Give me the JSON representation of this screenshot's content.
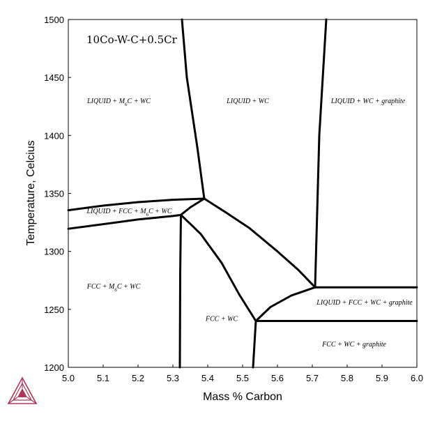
{
  "chart_data": {
    "type": "line",
    "title": "10Co-W-C+0.5Cr",
    "xlabel": "Mass % Carbon",
    "ylabel": "Temperature, Celcius",
    "xlim": [
      5.0,
      6.0
    ],
    "ylim": [
      1200,
      1500
    ],
    "xticks": [
      "5.0",
      "5.1",
      "5.2",
      "5.3",
      "5.4",
      "5.5",
      "5.6",
      "5.7",
      "5.8",
      "5.9",
      "6.0"
    ],
    "yticks": [
      "1200",
      "1250",
      "1300",
      "1350",
      "1400",
      "1450",
      "1500"
    ],
    "grid": false,
    "legend": "none",
    "line_color": "#000000",
    "logo_color": "#b0365a",
    "boundaries": [
      {
        "id": "liquidus-upper",
        "x": [
          5.0,
          5.1,
          5.2,
          5.3,
          5.39
        ],
        "y": [
          1335.5,
          1339.5,
          1342.5,
          1344.5,
          1345.5
        ]
      },
      {
        "id": "liquidus-lower",
        "x": [
          5.0,
          5.1,
          5.2,
          5.3,
          5.323
        ],
        "y": [
          1319.5,
          1323.5,
          1327.5,
          1330.5,
          1331.5
        ]
      },
      {
        "id": "m6c-wc-liquid-boundary",
        "x": [
          5.326,
          5.34,
          5.37,
          5.39
        ],
        "y": [
          1500,
          1450,
          1390,
          1345.5
        ]
      },
      {
        "id": "junction-short",
        "x": [
          5.323,
          5.35,
          5.39
        ],
        "y": [
          1331.5,
          1338,
          1345.5
        ]
      },
      {
        "id": "liquid-fcc-wc-upper",
        "x": [
          5.39,
          5.45,
          5.52,
          5.6,
          5.66,
          5.708
        ],
        "y": [
          1345.5,
          1334,
          1320,
          1300,
          1284,
          1269
        ]
      },
      {
        "id": "fcc-wc-left",
        "x": [
          5.323,
          5.38,
          5.44,
          5.49,
          5.538
        ],
        "y": [
          1331.5,
          1315,
          1290,
          1263,
          1240
        ]
      },
      {
        "id": "fcc-m6c-wc-boundary",
        "x": [
          5.32,
          5.321,
          5.323
        ],
        "y": [
          1200,
          1280,
          1331.5
        ]
      },
      {
        "id": "fcc-wc-graphite-left",
        "x": [
          5.53,
          5.535,
          5.538
        ],
        "y": [
          1200,
          1225,
          1240
        ]
      },
      {
        "id": "graphite-lower-sweep",
        "x": [
          5.538,
          5.58,
          5.64,
          5.708
        ],
        "y": [
          1240,
          1252,
          1262,
          1269
        ]
      },
      {
        "id": "graphite-upper-horizontal",
        "x": [
          5.708,
          6.0
        ],
        "y": [
          1269,
          1269
        ]
      },
      {
        "id": "graphite-lower-horizontal",
        "x": [
          5.538,
          6.0
        ],
        "y": [
          1240,
          1240
        ]
      },
      {
        "id": "liquid-wc-graphite-boundary",
        "x": [
          5.708,
          5.72,
          5.74
        ],
        "y": [
          1269,
          1400,
          1500
        ]
      }
    ],
    "regions": [
      {
        "label": "LIQUID + M6C + WC",
        "x": 5.145,
        "y": 1428
      },
      {
        "label": "LIQUID + WC",
        "x": 5.515,
        "y": 1428
      },
      {
        "label": "LIQUID + WC + graphite",
        "x": 5.86,
        "y": 1428
      },
      {
        "label": "LIQUID + FCC + M6C + WC",
        "x": 5.175,
        "y": 1333
      },
      {
        "label": "FCC + M6C + WC",
        "x": 5.13,
        "y": 1268
      },
      {
        "label": "FCC + WC",
        "x": 5.44,
        "y": 1240
      },
      {
        "label": "LIQUID + FCC + WC + graphite",
        "x": 5.85,
        "y": 1254
      },
      {
        "label": "FCC + WC + graphite",
        "x": 5.82,
        "y": 1218
      }
    ]
  }
}
